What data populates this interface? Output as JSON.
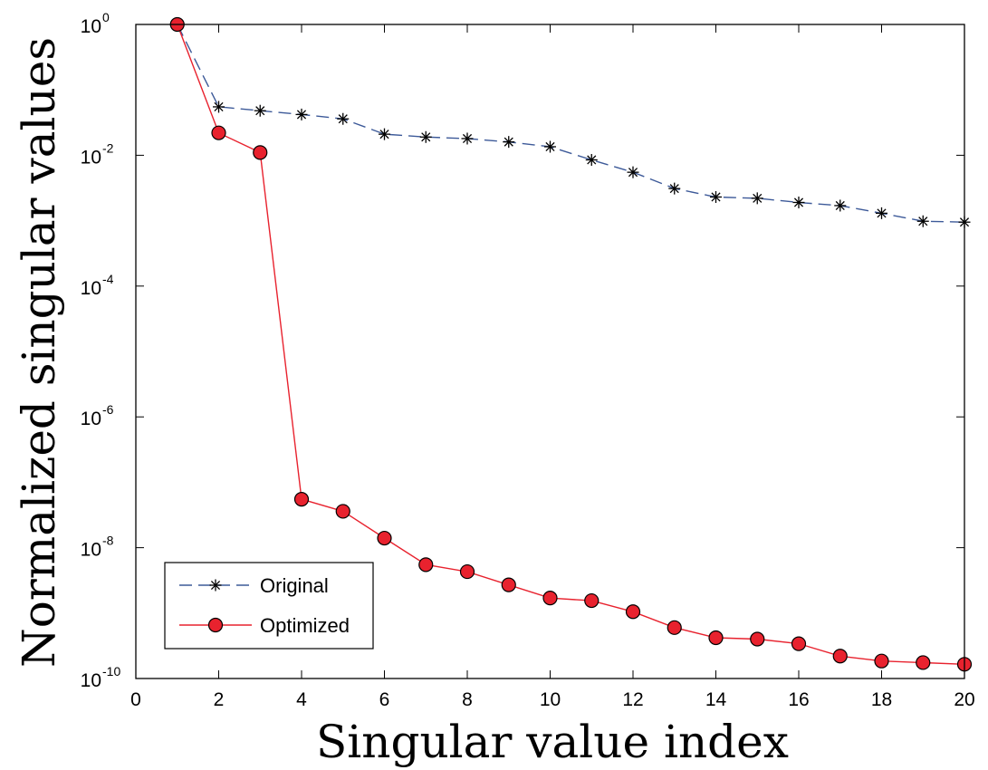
{
  "chart_data": {
    "type": "line",
    "xlabel": "Singular value index",
    "ylabel": "Normalized singular values",
    "yscale": "log",
    "xlim": [
      0,
      20
    ],
    "ylim": [
      1e-10,
      1
    ],
    "xticks": [
      0,
      2,
      4,
      6,
      8,
      10,
      12,
      14,
      16,
      18,
      20
    ],
    "yticks": [
      {
        "value": 1,
        "base": "10",
        "exp": "0"
      },
      {
        "value": 0.01,
        "base": "10",
        "exp": "-2"
      },
      {
        "value": 0.0001,
        "base": "10",
        "exp": "-4"
      },
      {
        "value": 1e-06,
        "base": "10",
        "exp": "-6"
      },
      {
        "value": 1e-08,
        "base": "10",
        "exp": "-8"
      },
      {
        "value": 1e-10,
        "base": "10",
        "exp": "-10"
      }
    ],
    "grid": false,
    "legend_position": "bottom-left",
    "x": [
      1,
      2,
      3,
      4,
      5,
      6,
      7,
      8,
      9,
      10,
      11,
      12,
      13,
      14,
      15,
      16,
      17,
      18,
      19,
      20
    ],
    "series": [
      {
        "name": "Original",
        "style": "dashed",
        "marker": "asterisk",
        "color": "#3d5a99",
        "values": [
          1,
          0.055,
          0.048,
          0.042,
          0.036,
          0.021,
          0.019,
          0.018,
          0.016,
          0.0135,
          0.0085,
          0.0055,
          0.0031,
          0.0023,
          0.0022,
          0.0019,
          0.0017,
          0.0013,
          0.00098,
          0.00095
        ]
      },
      {
        "name": "Optimized",
        "style": "solid",
        "marker": "circle",
        "color": "#e8222e",
        "values": [
          1,
          0.022,
          0.011,
          5.5e-08,
          3.6e-08,
          1.4e-08,
          5.5e-09,
          4.3e-09,
          2.7e-09,
          1.7e-09,
          1.55e-09,
          1.05e-09,
          6e-10,
          4.2e-10,
          4e-10,
          3.4e-10,
          2.2e-10,
          1.85e-10,
          1.75e-10,
          1.65e-10
        ]
      }
    ]
  }
}
